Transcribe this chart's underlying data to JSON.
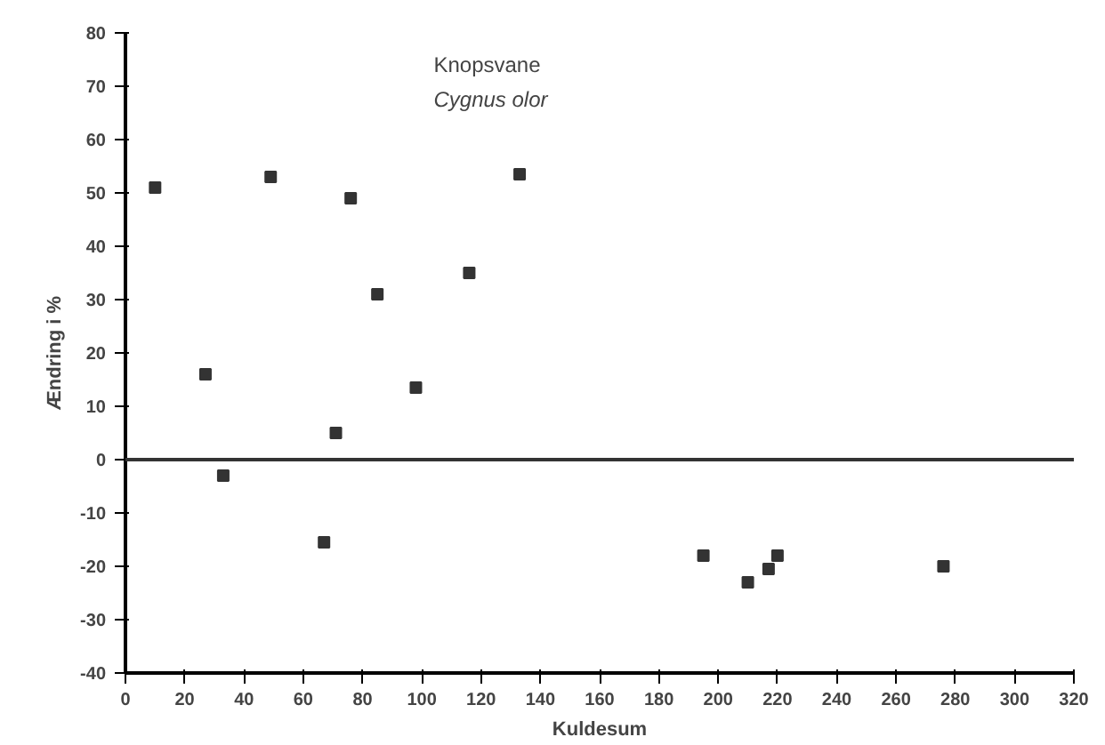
{
  "chart_data": {
    "type": "scatter",
    "title": "Knopsvane",
    "subtitle": "Cygnus olor",
    "xlabel": "Kuldesum",
    "ylabel": "Ændring i %",
    "x": [
      10,
      27,
      33,
      49,
      67,
      71,
      76,
      85,
      98,
      116,
      133,
      195,
      210,
      217,
      220,
      276
    ],
    "values": [
      51,
      16,
      -3,
      53,
      -15.5,
      5,
      49,
      31,
      13.5,
      35,
      53.5,
      -18,
      -23,
      -20.5,
      -18,
      -20
    ],
    "color": "#333333",
    "marker": "square",
    "xlim": [
      0,
      320
    ],
    "xticks": [
      0,
      20,
      40,
      60,
      80,
      100,
      120,
      140,
      160,
      180,
      200,
      220,
      240,
      260,
      280,
      300,
      320
    ],
    "ylim": [
      -40,
      80
    ],
    "yticks": [
      -40,
      -30,
      -20,
      -10,
      0,
      10,
      20,
      30,
      40,
      50,
      60,
      70,
      80
    ],
    "ref_lines": [
      {
        "axis": "y",
        "value": 0,
        "color": "#333333"
      }
    ],
    "grid": false
  }
}
